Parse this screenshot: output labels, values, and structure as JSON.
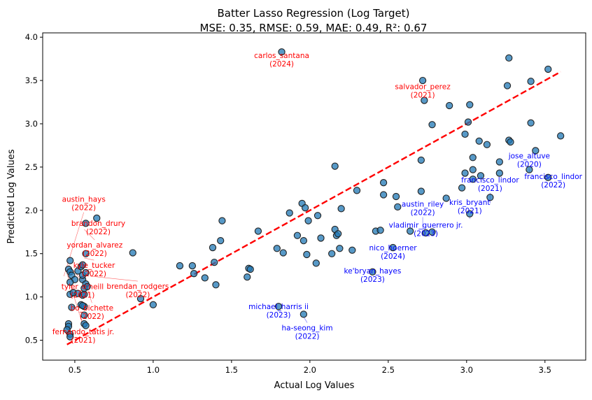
{
  "chart_data": {
    "type": "scatter",
    "title": "Batter Lasso Regression (Log Target)",
    "subtitle": "MSE: 0.35, RMSE: 0.59, MAE: 0.49, R²: 0.67",
    "xlabel": "Actual Log Values",
    "ylabel": "Predicted Log Values",
    "xlim": [
      0.295,
      3.76
    ],
    "ylim": [
      0.27,
      4.05
    ],
    "xticks": [
      "0.5",
      "1.0",
      "1.5",
      "2.0",
      "2.5",
      "3.0",
      "3.5"
    ],
    "yticks": [
      "0.5",
      "1.0",
      "1.5",
      "2.0",
      "2.5",
      "3.0",
      "3.5",
      "4.0"
    ],
    "grid": false,
    "point_color": "#1f77b4",
    "reference_line": {
      "from": [
        0.45,
        0.45
      ],
      "to": [
        3.6,
        3.6
      ],
      "color": "#ff0000",
      "style": "dashed"
    },
    "points": [
      [
        0.46,
        0.69
      ],
      [
        0.46,
        0.66
      ],
      [
        0.45,
        0.62
      ],
      [
        0.47,
        0.57
      ],
      [
        0.47,
        0.54
      ],
      [
        0.48,
        0.88
      ],
      [
        0.47,
        1.03
      ],
      [
        0.49,
        1.05
      ],
      [
        0.52,
        1.04
      ],
      [
        0.55,
        1.02
      ],
      [
        0.56,
        1.03
      ],
      [
        0.54,
        0.91
      ],
      [
        0.56,
        0.89
      ],
      [
        0.55,
        0.9
      ],
      [
        0.56,
        0.79
      ],
      [
        0.56,
        0.69
      ],
      [
        0.57,
        0.67
      ],
      [
        0.47,
        1.42
      ],
      [
        0.46,
        1.32
      ],
      [
        0.47,
        1.29
      ],
      [
        0.48,
        1.25
      ],
      [
        0.5,
        1.2
      ],
      [
        0.47,
        1.17
      ],
      [
        0.52,
        1.3
      ],
      [
        0.54,
        1.35
      ],
      [
        0.55,
        1.37
      ],
      [
        0.57,
        1.5
      ],
      [
        0.57,
        1.85
      ],
      [
        0.64,
        1.91
      ],
      [
        0.55,
        1.2
      ],
      [
        0.57,
        1.15
      ],
      [
        0.56,
        1.1
      ],
      [
        0.58,
        1.12
      ],
      [
        0.55,
        1.25
      ],
      [
        0.57,
        1.28
      ],
      [
        0.87,
        1.51
      ],
      [
        0.92,
        0.98
      ],
      [
        1.0,
        0.91
      ],
      [
        1.17,
        1.36
      ],
      [
        1.25,
        1.36
      ],
      [
        1.26,
        1.27
      ],
      [
        1.33,
        1.22
      ],
      [
        1.38,
        1.57
      ],
      [
        1.39,
        1.4
      ],
      [
        1.4,
        1.14
      ],
      [
        1.43,
        1.65
      ],
      [
        1.44,
        1.88
      ],
      [
        1.6,
        1.23
      ],
      [
        1.61,
        1.33
      ],
      [
        1.62,
        1.32
      ],
      [
        1.67,
        1.76
      ],
      [
        1.79,
        1.56
      ],
      [
        1.8,
        0.89
      ],
      [
        1.82,
        3.83
      ],
      [
        1.83,
        1.51
      ],
      [
        1.87,
        1.97
      ],
      [
        1.92,
        1.71
      ],
      [
        1.95,
        2.08
      ],
      [
        1.96,
        1.65
      ],
      [
        1.97,
        2.03
      ],
      [
        1.98,
        1.49
      ],
      [
        1.99,
        1.88
      ],
      [
        2.04,
        1.39
      ],
      [
        2.05,
        1.94
      ],
      [
        2.07,
        1.68
      ],
      [
        2.14,
        1.5
      ],
      [
        2.16,
        1.78
      ],
      [
        2.16,
        2.51
      ],
      [
        2.17,
        1.71
      ],
      [
        2.18,
        1.73
      ],
      [
        2.19,
        1.56
      ],
      [
        2.2,
        2.02
      ],
      [
        2.27,
        1.54
      ],
      [
        2.3,
        2.23
      ],
      [
        2.4,
        1.29
      ],
      [
        2.42,
        1.76
      ],
      [
        2.45,
        1.77
      ],
      [
        2.47,
        2.32
      ],
      [
        2.47,
        2.18
      ],
      [
        2.53,
        1.57
      ],
      [
        2.55,
        2.16
      ],
      [
        2.56,
        2.04
      ],
      [
        2.64,
        1.76
      ],
      [
        2.71,
        2.22
      ],
      [
        2.71,
        2.58
      ],
      [
        2.72,
        3.5
      ],
      [
        2.73,
        3.27
      ],
      [
        2.74,
        1.74
      ],
      [
        2.78,
        1.75
      ],
      [
        2.78,
        2.99
      ],
      [
        2.87,
        2.14
      ],
      [
        2.89,
        3.21
      ],
      [
        2.97,
        2.26
      ],
      [
        2.99,
        2.88
      ],
      [
        2.99,
        2.43
      ],
      [
        3.01,
        3.02
      ],
      [
        3.02,
        3.22
      ],
      [
        3.02,
        1.96
      ],
      [
        3.04,
        2.61
      ],
      [
        3.04,
        2.47
      ],
      [
        3.04,
        2.36
      ],
      [
        3.08,
        2.8
      ],
      [
        3.09,
        2.4
      ],
      [
        3.13,
        2.76
      ],
      [
        3.15,
        2.15
      ],
      [
        3.21,
        2.56
      ],
      [
        3.21,
        2.43
      ],
      [
        3.26,
        3.44
      ],
      [
        3.27,
        3.76
      ],
      [
        3.27,
        2.81
      ],
      [
        3.28,
        2.79
      ],
      [
        3.4,
        2.47
      ],
      [
        3.41,
        3.49
      ],
      [
        3.41,
        3.01
      ],
      [
        3.44,
        2.69
      ],
      [
        3.52,
        3.63
      ],
      [
        3.52,
        2.38
      ],
      [
        3.6,
        2.86
      ],
      [
        1.96,
        0.8
      ]
    ],
    "annotations": [
      {
        "name": "carlos_santana",
        "year": "(2024)",
        "x": 1.82,
        "y": 3.76,
        "color": "#ff0000"
      },
      {
        "name": "salvador_perez",
        "year": "(2021)",
        "x": 2.72,
        "y": 3.4,
        "color": "#ff0000"
      },
      {
        "name": "brandon_drury",
        "year": "(2022)",
        "x": 0.65,
        "y": 1.82,
        "color": "#ff0000"
      },
      {
        "name": "yordan_alvarez",
        "year": "(2022)",
        "x": 0.56,
        "y": 1.78,
        "color": "#ff0000"
      },
      {
        "name": "kyle_tucker",
        "year": "(2022)",
        "x": 0.56,
        "y": 1.45,
        "color": "#ff0000"
      },
      {
        "name": "tyler_o'neill",
        "year": "(2021)",
        "x": 0.46,
        "y": 1.37,
        "color": "#ff0000"
      },
      {
        "name": "bo_bichette",
        "year": "(2022)",
        "x": 0.54,
        "y": 1.31,
        "color": "#ff0000"
      },
      {
        "name": "fernando_tatis jr.",
        "year": "(2021)",
        "x": 0.45,
        "y": 1.27,
        "color": "#ff0000"
      },
      {
        "name": "austin_hays",
        "year": "(2022)",
        "x": 0.43,
        "y": 1.24,
        "color": "#ff0000"
      },
      {
        "name": "brendan_rodgers",
        "year": "(2022)",
        "x": 0.6,
        "y": 1.24,
        "color": "#ff0000"
      },
      {
        "name": "michael_harris ii",
        "year": "(2023)",
        "x": 1.8,
        "y": 0.86,
        "color": "#0000ff"
      },
      {
        "name": "ha-seong_kim",
        "year": "(2022)",
        "x": 1.96,
        "y": 0.77,
        "color": "#0000ff"
      },
      {
        "name": "ke'bryan_hayes",
        "year": "(2023)",
        "x": 2.4,
        "y": 1.27,
        "color": "#0000ff"
      },
      {
        "name": "nico_hoerner",
        "year": "(2024)",
        "x": 2.53,
        "y": 1.54,
        "color": "#0000ff"
      },
      {
        "name": "vladimir_guerrero jr.",
        "year": "(2023)",
        "x": 2.74,
        "y": 1.72,
        "color": "#0000ff"
      },
      {
        "name": "austin_riley",
        "year": "(2022)",
        "x": 2.72,
        "y": 1.72,
        "color": "#0000ff"
      },
      {
        "name": "kris_bryant",
        "year": "(2021)",
        "x": 3.02,
        "y": 1.9,
        "color": "#0000ff"
      },
      {
        "name": "francisco_lindor",
        "year": "(2021)",
        "x": 3.15,
        "y": 2.08,
        "color": "#0000ff"
      },
      {
        "name": "jose_altuve",
        "year": "(2020)",
        "x": 3.4,
        "y": 2.44,
        "color": "#0000ff"
      },
      {
        "name": "francisco_lindor",
        "year": "(2022)",
        "x": 3.51,
        "y": 2.34,
        "color": "#0000ff"
      }
    ]
  }
}
